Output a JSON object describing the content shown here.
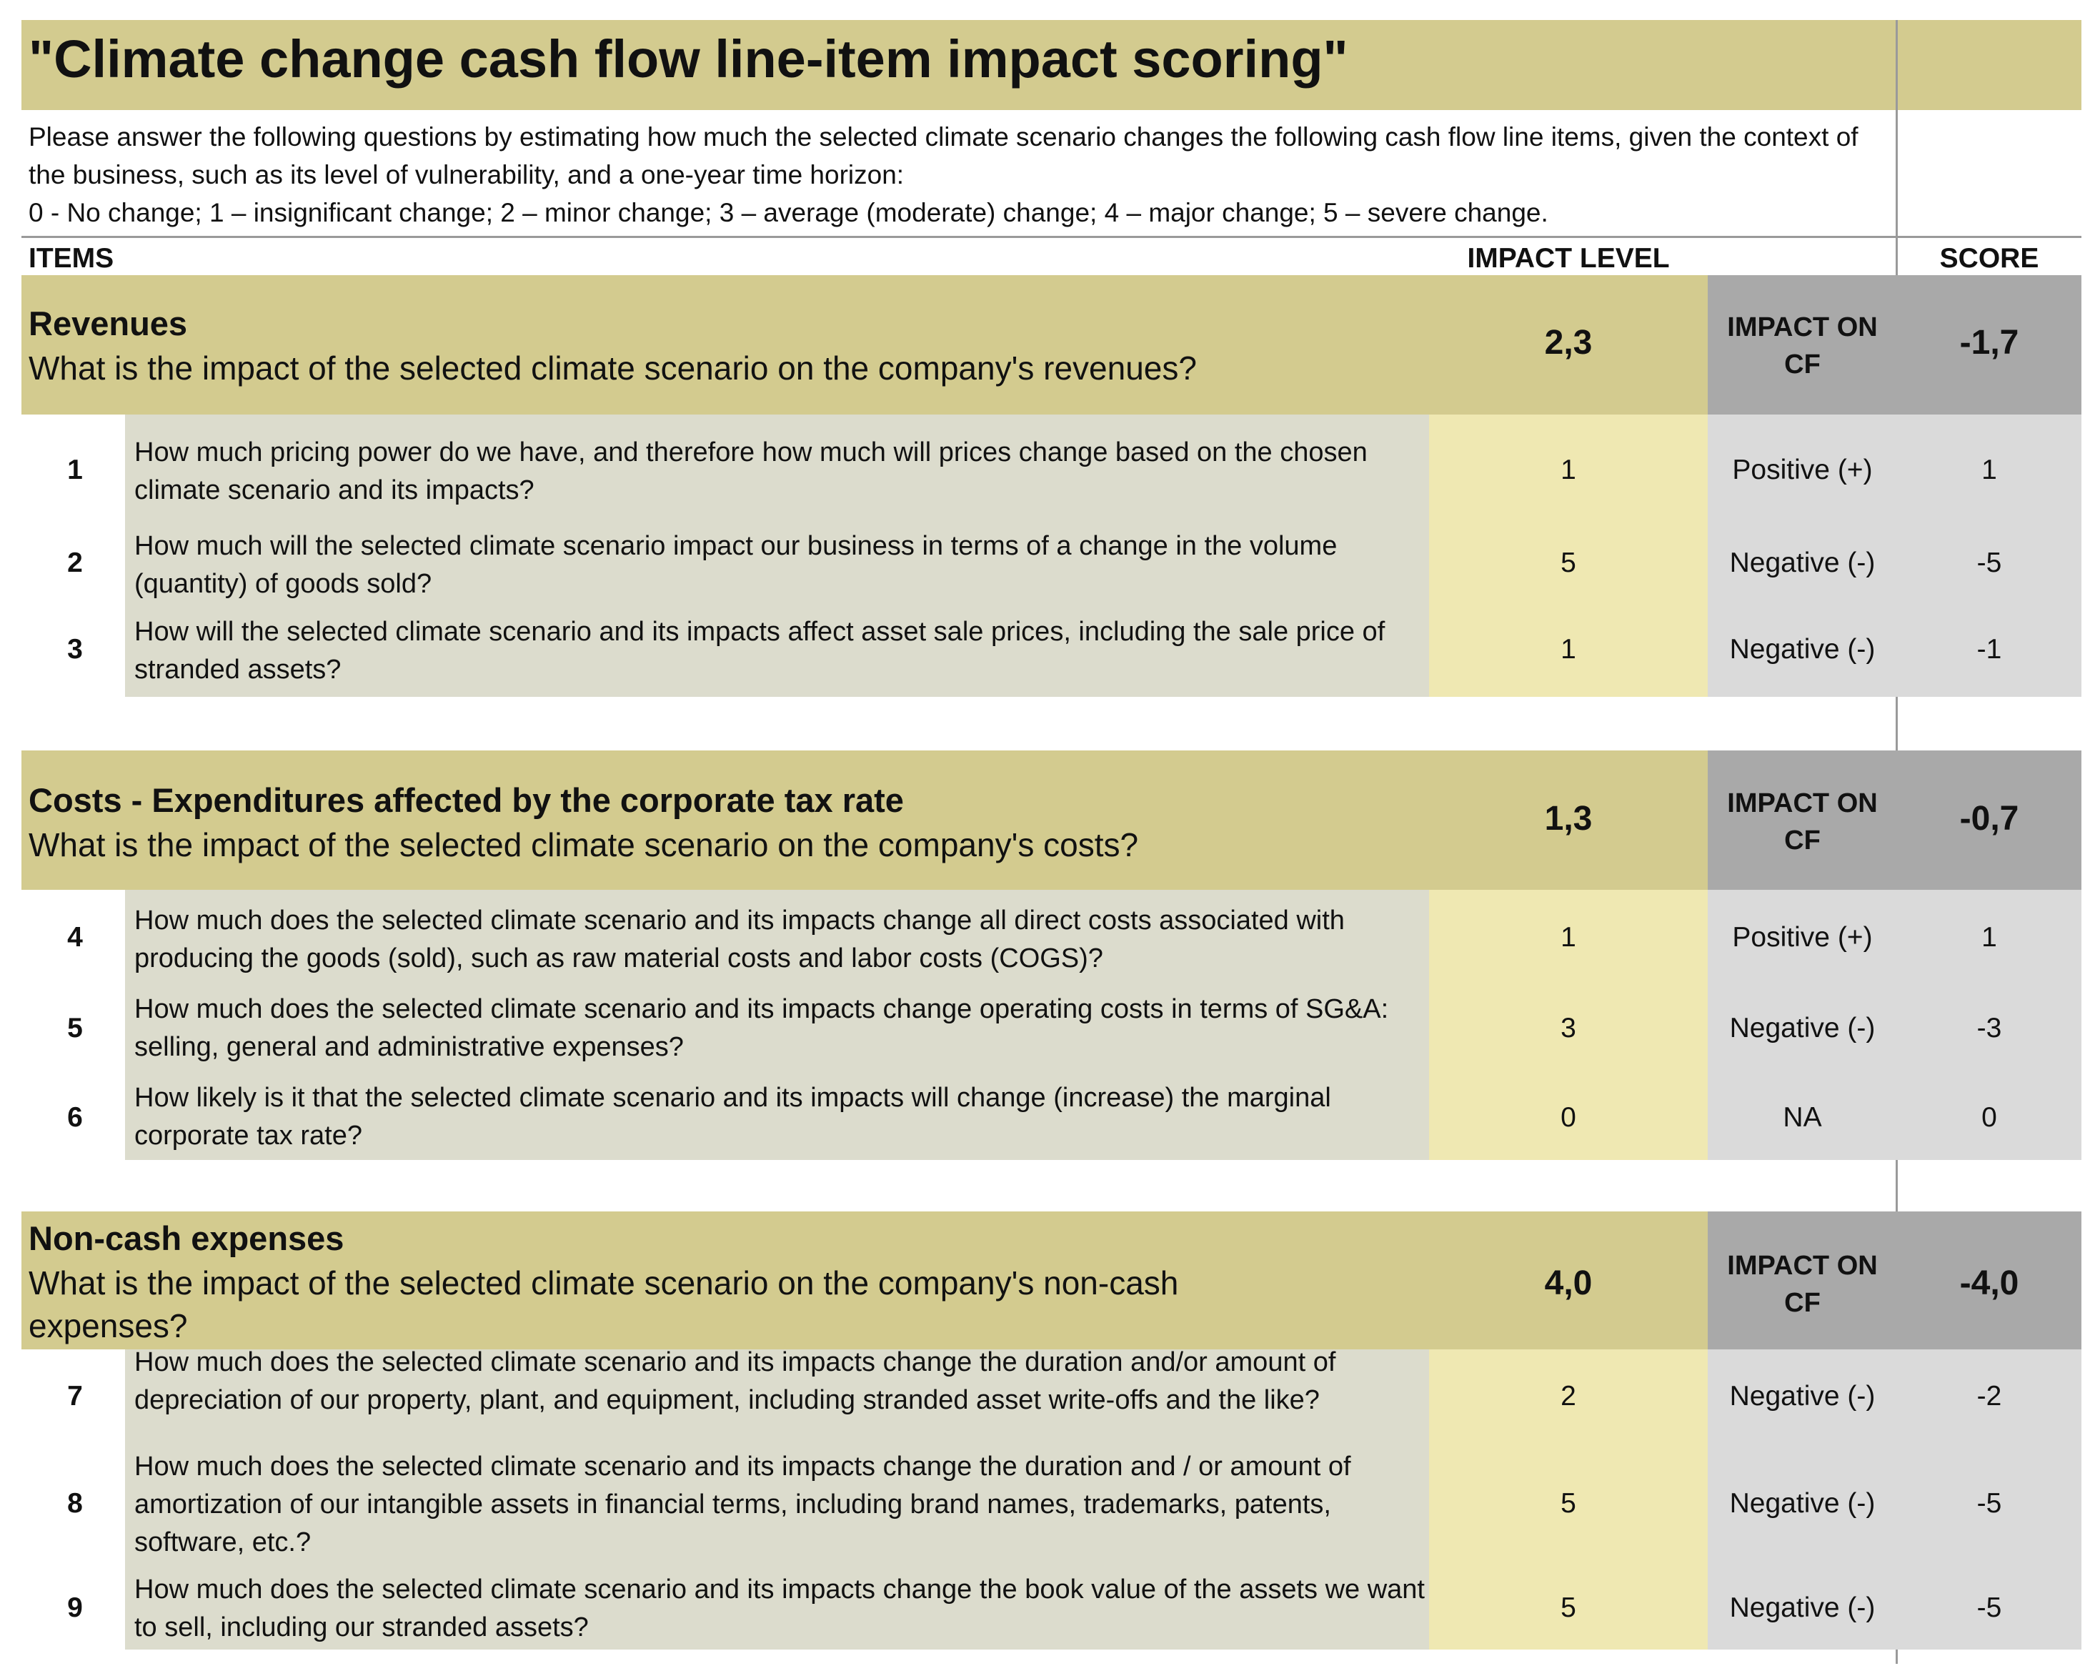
{
  "title": "\"Climate change cash flow line-item impact scoring\"",
  "intro": {
    "line1": "Please answer the following questions by estimating how much the selected climate scenario changes the following cash flow line items, given the context of the business, such as its level of vulnerability, and a one-year time horizon:",
    "line2": "0 - No change; 1 – insignificant change; 2 – minor change; 3 – average (moderate) change; 4 – major change; 5 – severe change."
  },
  "headers": {
    "items": "ITEMS",
    "impact_level": "IMPACT LEVEL",
    "score": "SCORE"
  },
  "colors": {
    "band": "#d3cb8f",
    "question_bg": "#dcdccd",
    "level_bg": "#efe8b2",
    "effect_bg": "#dadada",
    "dark_bg": "#a9a9a9"
  },
  "sections": [
    {
      "title": "Revenues",
      "question": "What is the impact of the selected climate scenario on the company's revenues?",
      "impact_level": "2,3",
      "cf_label_1": "IMPACT ON",
      "cf_label_2": "CF",
      "score": "-1,7",
      "rows": [
        {
          "num": "1",
          "text": "How much pricing power do we have, and therefore how much will prices change based on the chosen climate scenario and its impacts?",
          "level": "1",
          "effect": "Positive (+)",
          "score": "1"
        },
        {
          "num": "2",
          "text": "How much will the selected climate scenario impact our business in terms of a change in the volume (quantity)  of goods sold?",
          "level": "5",
          "effect": "Negative (-)",
          "score": "-5"
        },
        {
          "num": "3",
          "text": "How will the selected climate scenario and its impacts affect asset sale prices, including the sale price of stranded assets?",
          "level": "1",
          "effect": "Negative (-)",
          "score": "-1"
        }
      ]
    },
    {
      "title": "Costs - Expenditures affected by the corporate tax rate",
      "question": "What is the impact of the selected climate scenario on the company's costs?",
      "impact_level": "1,3",
      "cf_label_1": "IMPACT ON",
      "cf_label_2": "CF",
      "score": "-0,7",
      "rows": [
        {
          "num": "4",
          "text": "How much does the selected climate scenario and its impacts change all direct costs associated with producing the goods (sold), such as raw material costs and labor costs (COGS)?",
          "level": "1",
          "effect": "Positive (+)",
          "score": "1"
        },
        {
          "num": "5",
          "text": "How much does the selected climate scenario and its impacts change  operating costs in terms of SG&A: selling, general and administrative expenses?",
          "level": "3",
          "effect": "Negative (-)",
          "score": "-3"
        },
        {
          "num": "6",
          "text": "How likely is it that the selected climate scenario and its impacts will change (increase) the marginal corporate tax rate?",
          "level": "0",
          "effect": "NA",
          "score": "0"
        }
      ]
    },
    {
      "title": "Non-cash expenses",
      "question": "What is the impact of the selected climate scenario on the company's non-cash expenses?",
      "impact_level": "4,0",
      "cf_label_1": "IMPACT ON",
      "cf_label_2": "CF",
      "score": "-4,0",
      "rows": [
        {
          "num": "7",
          "text": "How much does the selected climate scenario and its impacts change the duration and/or amount of depreciation of our property, plant, and equipment, including stranded asset write-offs and the like?",
          "level": "2",
          "effect": "Negative (-)",
          "score": "-2"
        },
        {
          "num": "8",
          "text": "How much does the selected climate scenario and its impacts change the duration and / or amount of amortization of our intangible assets in financial terms, including brand names, trademarks, patents, software, etc.?",
          "level": "5",
          "effect": "Negative (-)",
          "score": "-5"
        },
        {
          "num": "9",
          "text": "How much does the selected climate scenario and its impacts change the book value of the assets we want to sell, including our stranded assets?",
          "level": "5",
          "effect": "Negative (-)",
          "score": "-5"
        }
      ]
    }
  ]
}
